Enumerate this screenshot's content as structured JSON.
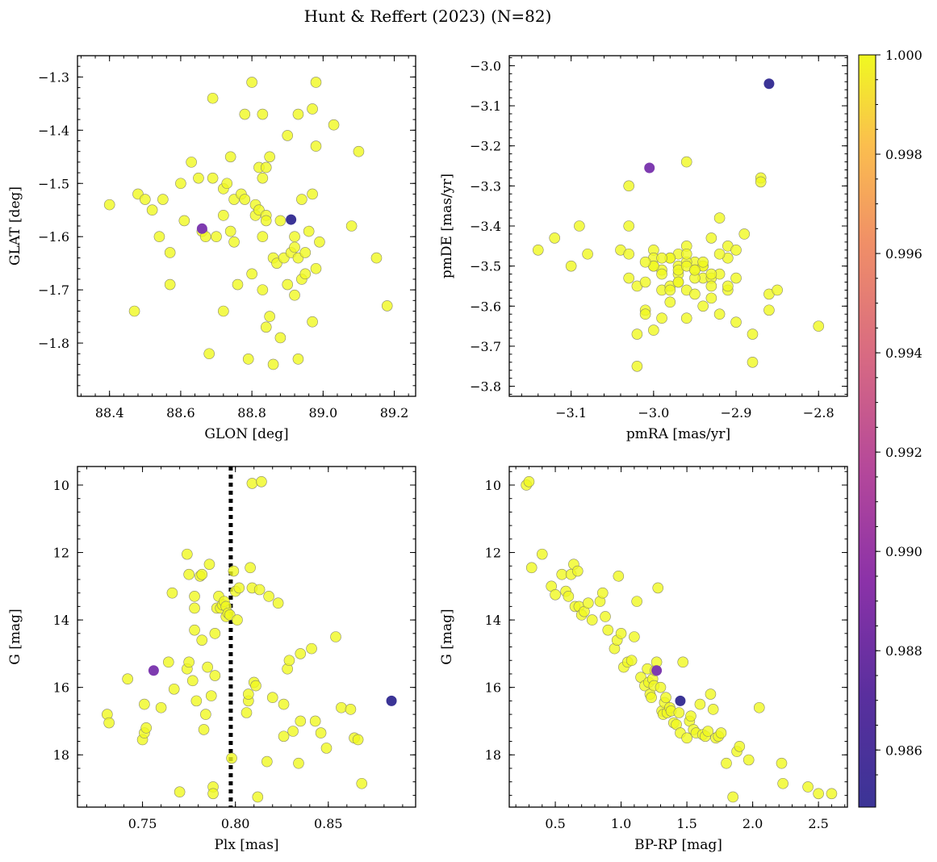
{
  "title": "Hunt & Reffert (2023) (N=82)",
  "colors": {
    "member_high": "#f0f921",
    "member_mid": "#7e3bb0",
    "member_low": "#3b3496",
    "reference_line": "#000000"
  },
  "colorbar": {
    "label_values": [
      "1.000",
      "0.998",
      "0.996",
      "0.994",
      "0.992",
      "0.990",
      "0.988",
      "0.986"
    ],
    "min": 0.98485,
    "max": 1.0,
    "colormap": "plasma"
  },
  "chart_data": [
    {
      "type": "scatter",
      "id": "panel-glon-glat",
      "xlabel": "GLON [deg]",
      "ylabel": "GLAT [deg]",
      "xlim": [
        88.31,
        89.26
      ],
      "ylim": [
        -1.9,
        -1.26
      ],
      "xticks": [
        "88.4",
        "88.6",
        "88.8",
        "89.0",
        "89.2"
      ],
      "yticks": [
        "−1.3",
        "−1.4",
        "−1.5",
        "−1.6",
        "−1.7",
        "−1.8"
      ],
      "x": [
        88.4,
        88.48,
        88.5,
        88.52,
        88.54,
        88.47,
        88.57,
        88.57,
        88.6,
        88.61,
        88.63,
        88.66,
        88.67,
        88.69,
        88.69,
        88.7,
        88.72,
        88.72,
        88.74,
        88.74,
        88.75,
        88.75,
        88.76,
        88.77,
        88.78,
        88.78,
        88.79,
        88.8,
        88.8,
        88.81,
        88.81,
        88.82,
        88.82,
        88.83,
        88.83,
        88.83,
        88.83,
        88.84,
        88.84,
        88.84,
        88.85,
        88.85,
        88.86,
        88.86,
        88.87,
        88.88,
        88.88,
        88.89,
        88.9,
        88.9,
        88.91,
        88.92,
        88.92,
        88.93,
        88.93,
        88.93,
        88.94,
        88.94,
        88.95,
        88.96,
        88.97,
        88.97,
        88.97,
        88.98,
        88.98,
        88.98,
        88.99,
        89.03,
        89.08,
        89.1,
        89.15,
        89.18,
        88.68,
        88.55,
        88.72,
        88.73,
        88.65,
        88.95,
        88.84,
        88.92,
        88.66,
        88.91
      ],
      "y": [
        -1.54,
        -1.52,
        -1.53,
        -1.55,
        -1.6,
        -1.74,
        -1.63,
        -1.69,
        -1.5,
        -1.57,
        -1.46,
        -1.59,
        -1.6,
        -1.49,
        -1.34,
        -1.6,
        -1.56,
        -1.74,
        -1.45,
        -1.59,
        -1.53,
        -1.61,
        -1.69,
        -1.52,
        -1.53,
        -1.37,
        -1.83,
        -1.67,
        -1.31,
        -1.54,
        -1.56,
        -1.55,
        -1.47,
        -1.37,
        -1.49,
        -1.6,
        -1.7,
        -1.47,
        -1.56,
        -1.77,
        -1.45,
        -1.75,
        -1.64,
        -1.84,
        -1.65,
        -1.57,
        -1.79,
        -1.64,
        -1.69,
        -1.41,
        -1.63,
        -1.62,
        -1.71,
        -1.37,
        -1.83,
        -1.64,
        -1.53,
        -1.68,
        -1.63,
        -1.59,
        -1.52,
        -1.36,
        -1.76,
        -1.31,
        -1.66,
        -1.43,
        -1.61,
        -1.39,
        -1.58,
        -1.44,
        -1.64,
        -1.73,
        -1.82,
        -1.53,
        -1.51,
        -1.5,
        -1.49,
        -1.67,
        -1.57,
        -1.6,
        -1.585,
        -1.568
      ],
      "probability": [
        1,
        1,
        1,
        1,
        1,
        1,
        1,
        1,
        1,
        1,
        1,
        1,
        1,
        1,
        1,
        1,
        1,
        1,
        1,
        1,
        1,
        1,
        1,
        1,
        1,
        1,
        1,
        1,
        1,
        1,
        1,
        1,
        1,
        1,
        1,
        1,
        1,
        1,
        1,
        1,
        1,
        1,
        1,
        1,
        1,
        1,
        1,
        1,
        1,
        1,
        1,
        1,
        1,
        1,
        1,
        1,
        1,
        1,
        1,
        1,
        1,
        1,
        1,
        1,
        1,
        1,
        1,
        1,
        1,
        1,
        1,
        1,
        1,
        1,
        1,
        1,
        1,
        1,
        1,
        1,
        0.9873,
        0.9852
      ]
    },
    {
      "type": "scatter",
      "id": "panel-pm",
      "xlabel": "pmRA [mas/yr]",
      "ylabel": "pmDE [mas/yr]",
      "xlim": [
        -3.175,
        -2.765
      ],
      "ylim": [
        -3.825,
        -2.975
      ],
      "xticks": [
        "−3.1",
        "−3.0",
        "−2.9",
        "−2.8"
      ],
      "yticks": [
        "−3.0",
        "−3.1",
        "−3.2",
        "−3.3",
        "−3.4",
        "−3.5",
        "−3.6",
        "−3.7",
        "−3.8"
      ],
      "x": [
        -3.14,
        -3.12,
        -3.1,
        -3.09,
        -3.08,
        -3.04,
        -3.03,
        -3.03,
        -3.03,
        -3.02,
        -3.02,
        -3.01,
        -3.01,
        -3.01,
        -3.0,
        -3.0,
        -3.0,
        -3.0,
        -2.99,
        -2.99,
        -2.99,
        -2.98,
        -2.98,
        -2.98,
        -2.97,
        -2.97,
        -2.97,
        -2.97,
        -2.96,
        -2.96,
        -2.96,
        -2.96,
        -2.95,
        -2.95,
        -2.95,
        -2.94,
        -2.94,
        -2.94,
        -2.93,
        -2.93,
        -2.93,
        -2.92,
        -2.92,
        -2.91,
        -2.91,
        -2.91,
        -2.9,
        -2.9,
        -2.9,
        -2.89,
        -2.88,
        -2.88,
        -2.87,
        -2.87,
        -2.86,
        -2.86,
        -2.85,
        -2.8,
        -2.96,
        -2.98,
        -2.92,
        -2.95,
        -2.94,
        -2.97,
        -2.99,
        -3.0,
        -2.93,
        -2.96,
        -3.02,
        -3.03,
        -2.94,
        -2.97,
        -2.99,
        -2.91,
        -2.96,
        -3.01,
        -2.95,
        -2.92,
        -2.98,
        -2.93,
        -3.005,
        -2.86
      ],
      "y": [
        -3.46,
        -3.43,
        -3.5,
        -3.4,
        -3.47,
        -3.46,
        -3.3,
        -3.4,
        -3.53,
        -3.55,
        -3.67,
        -3.54,
        -3.61,
        -3.62,
        -3.46,
        -3.48,
        -3.5,
        -3.66,
        -3.51,
        -3.56,
        -3.63,
        -3.48,
        -3.55,
        -3.59,
        -3.47,
        -3.5,
        -3.52,
        -3.54,
        -3.24,
        -3.45,
        -3.56,
        -3.63,
        -3.49,
        -3.51,
        -3.57,
        -3.6,
        -3.5,
        -3.53,
        -3.53,
        -3.55,
        -3.58,
        -3.38,
        -3.62,
        -3.45,
        -3.48,
        -3.56,
        -3.46,
        -3.53,
        -3.64,
        -3.42,
        -3.67,
        -3.74,
        -3.28,
        -3.29,
        -3.57,
        -3.61,
        -3.56,
        -3.65,
        -3.49,
        -3.48,
        -3.52,
        -3.53,
        -3.5,
        -3.51,
        -3.48,
        -3.5,
        -3.43,
        -3.47,
        -3.75,
        -3.47,
        -3.49,
        -3.54,
        -3.52,
        -3.55,
        -3.5,
        -3.49,
        -3.51,
        -3.47,
        -3.56,
        -3.52,
        -3.255,
        -3.045
      ],
      "probability": [
        1,
        1,
        1,
        1,
        1,
        1,
        1,
        1,
        1,
        1,
        1,
        1,
        1,
        1,
        1,
        1,
        1,
        1,
        1,
        1,
        1,
        1,
        1,
        1,
        1,
        1,
        1,
        1,
        1,
        1,
        1,
        1,
        1,
        1,
        1,
        1,
        1,
        1,
        1,
        1,
        1,
        1,
        1,
        1,
        1,
        1,
        1,
        1,
        1,
        1,
        1,
        1,
        1,
        1,
        1,
        1,
        1,
        1,
        1,
        1,
        1,
        1,
        1,
        1,
        1,
        1,
        1,
        1,
        1,
        1,
        1,
        1,
        1,
        1,
        1,
        1,
        1,
        1,
        1,
        1,
        0.9873,
        0.9852
      ]
    },
    {
      "type": "scatter",
      "id": "panel-plx-g",
      "xlabel": "Plx [mas]",
      "ylabel": "G [mag]",
      "xlim": [
        0.715,
        0.897
      ],
      "ylim": [
        19.55,
        9.45
      ],
      "xticks": [
        "0.75",
        "0.80",
        "0.85"
      ],
      "yticks": [
        "10",
        "12",
        "14",
        "16",
        "18"
      ],
      "reference_line_x": 0.7975,
      "x": [
        0.731,
        0.732,
        0.742,
        0.75,
        0.751,
        0.751,
        0.752,
        0.76,
        0.764,
        0.766,
        0.767,
        0.77,
        0.774,
        0.774,
        0.775,
        0.775,
        0.777,
        0.778,
        0.778,
        0.778,
        0.779,
        0.781,
        0.782,
        0.782,
        0.783,
        0.784,
        0.785,
        0.786,
        0.787,
        0.788,
        0.788,
        0.789,
        0.789,
        0.79,
        0.791,
        0.792,
        0.793,
        0.794,
        0.795,
        0.795,
        0.796,
        0.797,
        0.798,
        0.799,
        0.8,
        0.801,
        0.802,
        0.806,
        0.807,
        0.807,
        0.808,
        0.809,
        0.809,
        0.81,
        0.811,
        0.812,
        0.813,
        0.814,
        0.817,
        0.818,
        0.82,
        0.823,
        0.826,
        0.826,
        0.828,
        0.829,
        0.831,
        0.834,
        0.835,
        0.835,
        0.841,
        0.843,
        0.846,
        0.849,
        0.854,
        0.857,
        0.862,
        0.864,
        0.866,
        0.868,
        0.884,
        0.756
      ],
      "y": [
        16.8,
        17.05,
        15.75,
        17.55,
        16.5,
        17.35,
        17.2,
        16.6,
        15.25,
        13.2,
        16.05,
        19.1,
        12.05,
        15.45,
        15.25,
        12.65,
        15.8,
        13.3,
        13.65,
        14.3,
        16.4,
        12.7,
        12.65,
        14.6,
        17.25,
        16.8,
        15.4,
        12.35,
        16.25,
        18.95,
        19.15,
        15.65,
        14.4,
        13.65,
        13.3,
        13.65,
        13.55,
        13.45,
        13.9,
        13.6,
        13.8,
        13.85,
        18.1,
        12.55,
        13.15,
        14.0,
        13.05,
        16.75,
        16.4,
        16.2,
        12.45,
        9.95,
        13.05,
        15.85,
        15.95,
        19.25,
        13.1,
        9.9,
        18.2,
        13.3,
        16.3,
        13.5,
        17.45,
        16.5,
        15.45,
        15.2,
        17.3,
        18.25,
        17.0,
        15.0,
        14.85,
        17.0,
        17.35,
        17.8,
        14.5,
        16.6,
        16.65,
        17.5,
        17.55,
        18.85,
        16.4,
        15.5
      ],
      "probability": [
        1,
        1,
        1,
        1,
        1,
        1,
        1,
        1,
        1,
        1,
        1,
        1,
        1,
        1,
        1,
        1,
        1,
        1,
        1,
        1,
        1,
        1,
        1,
        1,
        1,
        1,
        1,
        1,
        1,
        1,
        1,
        1,
        1,
        1,
        1,
        1,
        1,
        1,
        1,
        1,
        1,
        1,
        1,
        1,
        1,
        1,
        1,
        1,
        1,
        1,
        1,
        1,
        1,
        1,
        1,
        1,
        1,
        1,
        1,
        1,
        1,
        1,
        1,
        1,
        1,
        1,
        1,
        1,
        1,
        1,
        1,
        1,
        1,
        1,
        1,
        1,
        1,
        1,
        1,
        1,
        0.9852,
        0.9873
      ]
    },
    {
      "type": "scatter",
      "id": "panel-cmd",
      "xlabel": "BP-RP [mag]",
      "ylabel": "G [mag]",
      "xlim": [
        0.15,
        2.72
      ],
      "ylim": [
        19.55,
        9.45
      ],
      "xticks": [
        "0.5",
        "1.0",
        "1.5",
        "2.0",
        "2.5"
      ],
      "yticks": [
        "10",
        "12",
        "14",
        "16",
        "18"
      ],
      "x": [
        0.28,
        0.3,
        0.32,
        0.4,
        0.47,
        0.5,
        0.55,
        0.58,
        0.6,
        0.62,
        0.64,
        0.65,
        0.67,
        0.68,
        0.7,
        0.72,
        0.75,
        0.78,
        0.84,
        0.86,
        0.88,
        0.9,
        0.95,
        0.97,
        0.98,
        1.0,
        1.02,
        1.05,
        1.08,
        1.1,
        1.12,
        1.15,
        1.18,
        1.2,
        1.21,
        1.22,
        1.23,
        1.24,
        1.25,
        1.26,
        1.27,
        1.28,
        1.3,
        1.31,
        1.32,
        1.33,
        1.34,
        1.35,
        1.37,
        1.38,
        1.4,
        1.42,
        1.44,
        1.45,
        1.47,
        1.5,
        1.52,
        1.53,
        1.55,
        1.57,
        1.6,
        1.62,
        1.64,
        1.66,
        1.68,
        1.7,
        1.72,
        1.74,
        1.76,
        1.8,
        1.85,
        1.88,
        1.9,
        1.97,
        2.05,
        2.22,
        2.23,
        2.42,
        2.5,
        2.6,
        1.27,
        1.45
      ],
      "y": [
        10.0,
        9.9,
        12.45,
        12.05,
        13.0,
        13.25,
        12.65,
        13.15,
        13.3,
        12.65,
        12.35,
        13.6,
        12.55,
        13.6,
        13.85,
        13.75,
        13.5,
        14.0,
        13.45,
        13.2,
        13.9,
        14.3,
        14.85,
        14.6,
        12.7,
        14.4,
        15.4,
        15.25,
        15.2,
        14.5,
        13.45,
        15.7,
        15.95,
        15.45,
        15.85,
        16.2,
        16.3,
        15.75,
        15.95,
        15.5,
        15.25,
        13.05,
        16.0,
        16.7,
        16.8,
        16.45,
        16.3,
        16.75,
        16.6,
        16.7,
        17.05,
        17.1,
        16.75,
        17.35,
        15.25,
        17.5,
        17.0,
        16.85,
        17.25,
        17.35,
        16.5,
        17.4,
        17.45,
        17.3,
        16.2,
        16.65,
        17.5,
        17.45,
        17.35,
        18.25,
        19.25,
        17.9,
        17.75,
        18.15,
        16.6,
        18.25,
        18.85,
        18.95,
        19.15,
        19.15,
        15.5,
        16.4
      ],
      "probability": [
        1,
        1,
        1,
        1,
        1,
        1,
        1,
        1,
        1,
        1,
        1,
        1,
        1,
        1,
        1,
        1,
        1,
        1,
        1,
        1,
        1,
        1,
        1,
        1,
        1,
        1,
        1,
        1,
        1,
        1,
        1,
        1,
        1,
        1,
        1,
        1,
        1,
        1,
        1,
        1,
        1,
        1,
        1,
        1,
        1,
        1,
        1,
        1,
        1,
        1,
        1,
        1,
        1,
        1,
        1,
        1,
        1,
        1,
        1,
        1,
        1,
        1,
        1,
        1,
        1,
        1,
        1,
        1,
        1,
        1,
        1,
        1,
        1,
        1,
        1,
        1,
        1,
        1,
        1,
        1,
        0.9873,
        0.9852
      ]
    }
  ]
}
